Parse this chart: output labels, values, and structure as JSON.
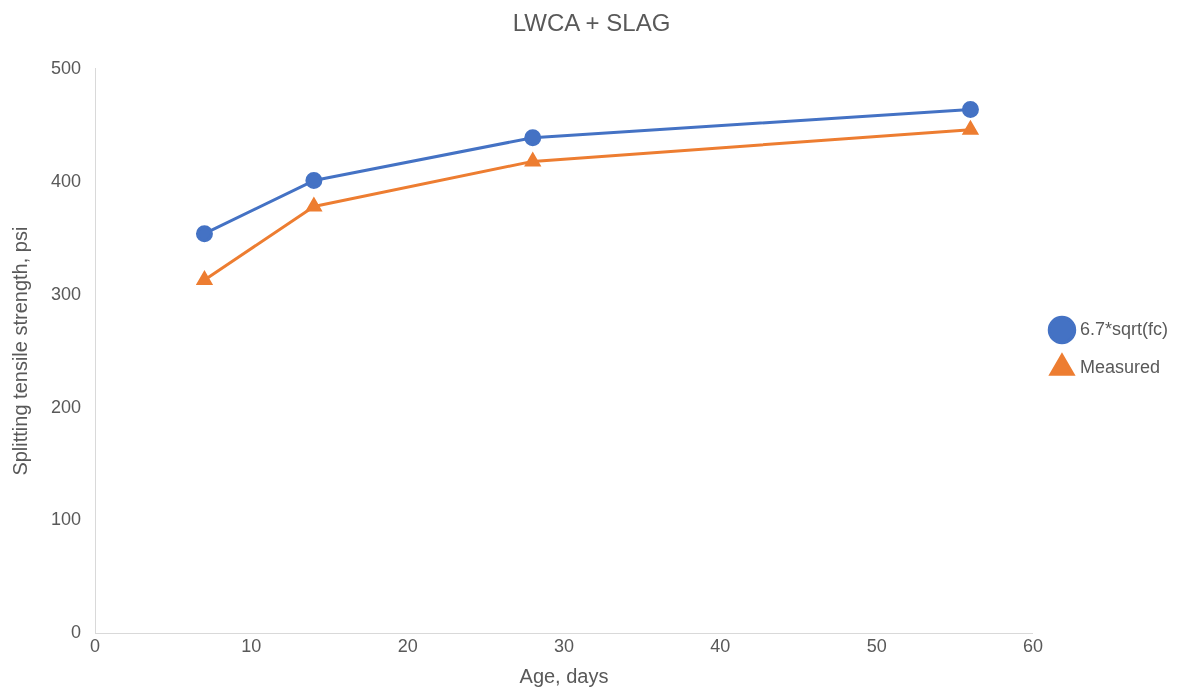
{
  "chart_data": {
    "type": "line",
    "title": "LWCA + SLAG",
    "xlabel": "Age, days",
    "ylabel": "Splitting tensile strength, psi",
    "x": [
      7,
      14,
      28,
      56
    ],
    "series": [
      {
        "name": "6.7*sqrt(fc)",
        "color": "#4472c4",
        "marker": "circle",
        "values": [
          354,
          401,
          439,
          464
        ]
      },
      {
        "name": "Measured",
        "color": "#ed7d31",
        "marker": "triangle",
        "values": [
          313,
          378,
          418,
          446
        ]
      }
    ],
    "xlim": [
      0,
      60
    ],
    "xticks": [
      0,
      10,
      20,
      30,
      40,
      50,
      60
    ],
    "ylim": [
      0,
      500
    ],
    "yticks": [
      0,
      100,
      200,
      300,
      400,
      500
    ],
    "grid": false,
    "legend": "right",
    "line_style": "solid"
  }
}
